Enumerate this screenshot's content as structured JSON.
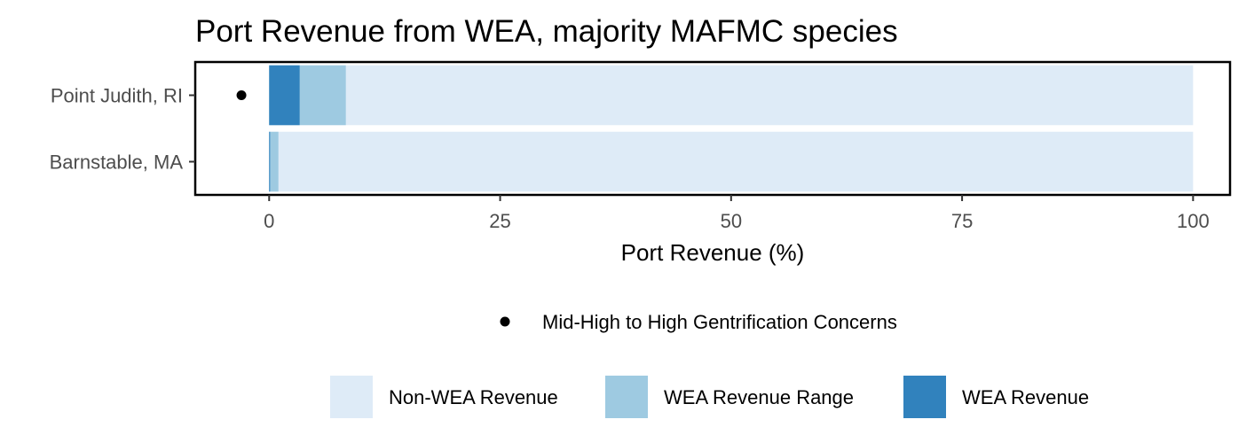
{
  "chart_data": {
    "type": "bar",
    "orientation": "horizontal",
    "stacked": true,
    "title": "Port Revenue from WEA, majority MAFMC species",
    "xlabel": "Port Revenue (%)",
    "ylabel": "",
    "xlim": [
      -8,
      104
    ],
    "xticks": [
      0,
      25,
      50,
      75,
      100
    ],
    "xtick_labels": [
      "0",
      "25",
      "50",
      "75",
      "100"
    ],
    "categories": [
      "Point Judith, RI",
      "Barnstable, MA"
    ],
    "series": [
      {
        "name": "Non-WEA Revenue",
        "color": "#deebf7",
        "values": [
          100,
          100
        ]
      },
      {
        "name": "WEA Revenue Range",
        "color": "#9ecae1",
        "values": [
          8.3,
          1.0
        ]
      },
      {
        "name": "WEA Revenue",
        "color": "#3182bd",
        "values": [
          3.3,
          0.1
        ]
      }
    ],
    "gentrification_points": {
      "name": "Mid-High to High Gentrification Concerns",
      "color": "#000000",
      "points": [
        {
          "category": "Point Judith, RI",
          "x": -3
        }
      ]
    },
    "grid": false,
    "legend_position": "bottom"
  }
}
